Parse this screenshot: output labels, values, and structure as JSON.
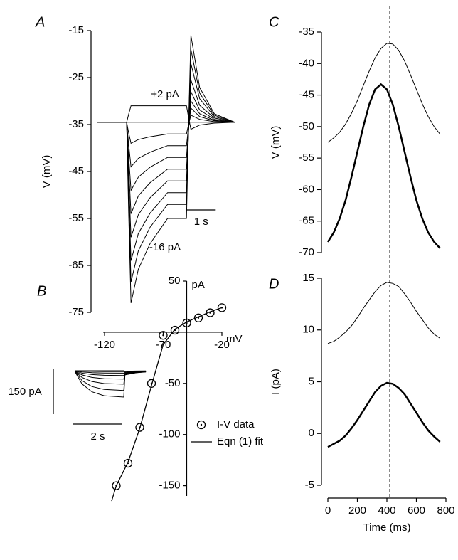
{
  "chart_data": [
    {
      "type": "line",
      "panel": "A",
      "ylabel": "V (mV)",
      "ylim": [
        -75,
        -15
      ],
      "yticks": [
        -15,
        -25,
        -35,
        -45,
        -55,
        -65,
        -75
      ],
      "xlim": [
        0,
        4.7
      ],
      "x": [
        0,
        1.0,
        1.07,
        1.15,
        1.4,
        1.8,
        2.4,
        3.05,
        3.12,
        3.2,
        3.5,
        4.0,
        4.7
      ],
      "series": [
        {
          "color": "#000000",
          "width": 1,
          "values": [
            -34.5,
            -34.5,
            -32.8,
            -31,
            -31,
            -31,
            -31,
            -31,
            -33.5,
            -36,
            -35.1,
            -34.7,
            -34.5
          ]
        },
        {
          "color": "#000000",
          "width": 1,
          "values": [
            -34.5,
            -34.5,
            -34.5,
            -34.5,
            -34.5,
            -34.5,
            -34.5,
            -34.5,
            -34.5,
            -34.5,
            -34.5,
            -34.5,
            -34.5
          ]
        },
        {
          "color": "#000000",
          "width": 1,
          "values": [
            -34.5,
            -34.5,
            -36.8,
            -39,
            -38.2,
            -37.6,
            -37,
            -37,
            -35,
            -33,
            -33.9,
            -34.4,
            -34.5
          ]
        },
        {
          "color": "#000000",
          "width": 1,
          "values": [
            -34.5,
            -34.5,
            -39.3,
            -44,
            -42.2,
            -40.9,
            -39.5,
            -39.5,
            -35.5,
            -31.5,
            -33.3,
            -34.2,
            -34.5
          ]
        },
        {
          "color": "#000000",
          "width": 1,
          "values": [
            -34.5,
            -34.5,
            -41.8,
            -49,
            -46.2,
            -44.1,
            -42,
            -42,
            -36,
            -30,
            -32.7,
            -34.1,
            -34.5
          ]
        },
        {
          "color": "#000000",
          "width": 1,
          "values": [
            -34.5,
            -34.5,
            -44.3,
            -54,
            -50.2,
            -47.4,
            -44.5,
            -44.5,
            -36.3,
            -28,
            -31.9,
            -33.9,
            -34.5
          ]
        },
        {
          "color": "#000000",
          "width": 1,
          "values": [
            -34.5,
            -34.5,
            -46.8,
            -59,
            -54.2,
            -50.6,
            -47,
            -47,
            -36.3,
            -25.5,
            -30.9,
            -33.6,
            -34.5
          ]
        },
        {
          "color": "#000000",
          "width": 1,
          "values": [
            -34.5,
            -34.5,
            -49.3,
            -64,
            -58.2,
            -53.9,
            -49.5,
            -49.5,
            -35.8,
            -22,
            -29.5,
            -33.3,
            -34.5
          ]
        },
        {
          "color": "#000000",
          "width": 1,
          "values": [
            -34.5,
            -34.5,
            -51.5,
            -68.5,
            -61.9,
            -56.9,
            -52,
            -52,
            -35.5,
            -19,
            -28.3,
            -33,
            -34.5
          ]
        },
        {
          "color": "#000000",
          "width": 1,
          "values": [
            -34.5,
            -34.5,
            -53.8,
            -73,
            -65.8,
            -60.4,
            -55,
            -55,
            -35.5,
            -16,
            -27.1,
            -32.7,
            -34.5
          ]
        }
      ],
      "annotations": [
        "+2 pA",
        "-16 pA"
      ],
      "scalebar": {
        "label": "1 s",
        "length": 1
      }
    },
    {
      "type": "scatter",
      "panel": "B",
      "xlabel": "mV",
      "ylabel": "pA",
      "xlim": [
        -120,
        -20
      ],
      "xticks": [
        -120,
        -70,
        -20
      ],
      "ylim": [
        -160,
        50
      ],
      "yticks": [
        50,
        -50,
        -100,
        -150
      ],
      "y_axis_at": -50,
      "legend": "lower right",
      "series": [
        {
          "name": "I-V data",
          "color": "#000000",
          "marker": "circle",
          "x": [
            -110,
            -100,
            -90,
            -80,
            -70,
            -60,
            -50,
            -40,
            -30,
            -20
          ],
          "values": [
            -150,
            -128,
            -93,
            -50,
            -3,
            2,
            9,
            14,
            19,
            24
          ]
        },
        {
          "name": "Eqn (1) fit",
          "color": "#000000",
          "marker": "line",
          "x": [
            -114,
            -110,
            -100,
            -90,
            -80,
            -70,
            -60,
            -50,
            -40,
            -30,
            -20
          ],
          "values": [
            -165,
            -150,
            -127,
            -94,
            -52,
            -12,
            3,
            10,
            15,
            20,
            24
          ]
        }
      ],
      "inset": {
        "x": [
          0,
          0.05,
          0.3,
          0.7,
          1.2,
          2.0,
          2.05,
          2.5,
          2.9
        ],
        "series": [
          {
            "values": [
              0,
              0,
              0,
              0,
              0,
              0,
              -2,
              -1,
              -0.6
            ]
          },
          {
            "values": [
              0,
              -0.3,
              -1.5,
              -2.4,
              -2.9,
              -3,
              -4,
              -2,
              -1.2
            ]
          },
          {
            "values": [
              0,
              -0.8,
              -4,
              -6.4,
              -7.6,
              -8,
              -6,
              -3,
              -1.8
            ]
          },
          {
            "values": [
              0,
              -1.6,
              -8,
              -12.8,
              -15.2,
              -16,
              -8,
              -4,
              -2.4
            ]
          },
          {
            "values": [
              0,
              -2.8,
              -14,
              -22.4,
              -26.6,
              -28,
              -10,
              -5,
              -3
            ]
          },
          {
            "values": [
              0,
              -4.5,
              -22.5,
              -36,
              -42.8,
              -45,
              -12,
              -6,
              -3.6
            ]
          },
          {
            "values": [
              0,
              -6.6,
              -33,
              -52.8,
              -62.7,
              -66,
              -13,
              -6.5,
              -3.9
            ]
          },
          {
            "values": [
              0,
              -8.8,
              -44,
              -70.4,
              -83.6,
              -88,
              -14,
              -7,
              -4.2
            ]
          }
        ],
        "scalebars": [
          {
            "label": "150 pA",
            "length": 150
          },
          {
            "label": "2 s",
            "length": 2
          }
        ]
      }
    },
    {
      "type": "line",
      "panel": "C",
      "ylabel": "V (mV)",
      "ylim": [
        -70,
        -35
      ],
      "yticks": [
        -35,
        -40,
        -45,
        -50,
        -55,
        -60,
        -65,
        -70
      ],
      "xlim": [
        0,
        800
      ],
      "vline": 420,
      "x": [
        0,
        40,
        80,
        120,
        160,
        200,
        240,
        280,
        320,
        360,
        400,
        440,
        480,
        520,
        560,
        600,
        640,
        680,
        720,
        760
      ],
      "series": [
        {
          "color": "#000000",
          "width": 1,
          "values": [
            -52.5,
            -51.8,
            -50.9,
            -49.6,
            -47.9,
            -45.9,
            -43.5,
            -41.2,
            -39.1,
            -37.6,
            -36.8,
            -36.9,
            -37.9,
            -39.6,
            -41.8,
            -44.1,
            -46.4,
            -48.4,
            -50.0,
            -51.2
          ]
        },
        {
          "color": "#000000",
          "width": 2.5,
          "values": [
            -68.3,
            -66.8,
            -64.6,
            -61.7,
            -58.0,
            -54.0,
            -50.0,
            -46.5,
            -44.1,
            -43.3,
            -44.1,
            -46.5,
            -50.0,
            -54.0,
            -58.0,
            -61.7,
            -64.6,
            -66.8,
            -68.3,
            -69.3
          ]
        }
      ]
    },
    {
      "type": "line",
      "panel": "D",
      "ylabel": "I (pA)",
      "xlabel": "Time (ms)",
      "ylim": [
        -5,
        15
      ],
      "yticks": [
        15,
        10,
        5,
        0,
        -5
      ],
      "xlim": [
        0,
        800
      ],
      "xticks": [
        0,
        200,
        400,
        600,
        800
      ],
      "vline": 420,
      "x": [
        0,
        40,
        80,
        120,
        160,
        200,
        240,
        280,
        320,
        360,
        400,
        440,
        480,
        520,
        560,
        600,
        640,
        680,
        720,
        760
      ],
      "series": [
        {
          "color": "#000000",
          "width": 1,
          "values": [
            8.7,
            8.9,
            9.3,
            9.8,
            10.4,
            11.2,
            12.1,
            12.9,
            13.7,
            14.3,
            14.6,
            14.5,
            14.2,
            13.5,
            12.7,
            11.8,
            11.0,
            10.2,
            9.6,
            9.2
          ]
        },
        {
          "color": "#000000",
          "width": 2.5,
          "values": [
            -1.3,
            -1.0,
            -0.7,
            -0.2,
            0.5,
            1.3,
            2.2,
            3.1,
            4.0,
            4.6,
            4.9,
            4.8,
            4.4,
            3.8,
            2.9,
            2.0,
            1.1,
            0.3,
            -0.3,
            -0.8
          ]
        }
      ]
    }
  ]
}
